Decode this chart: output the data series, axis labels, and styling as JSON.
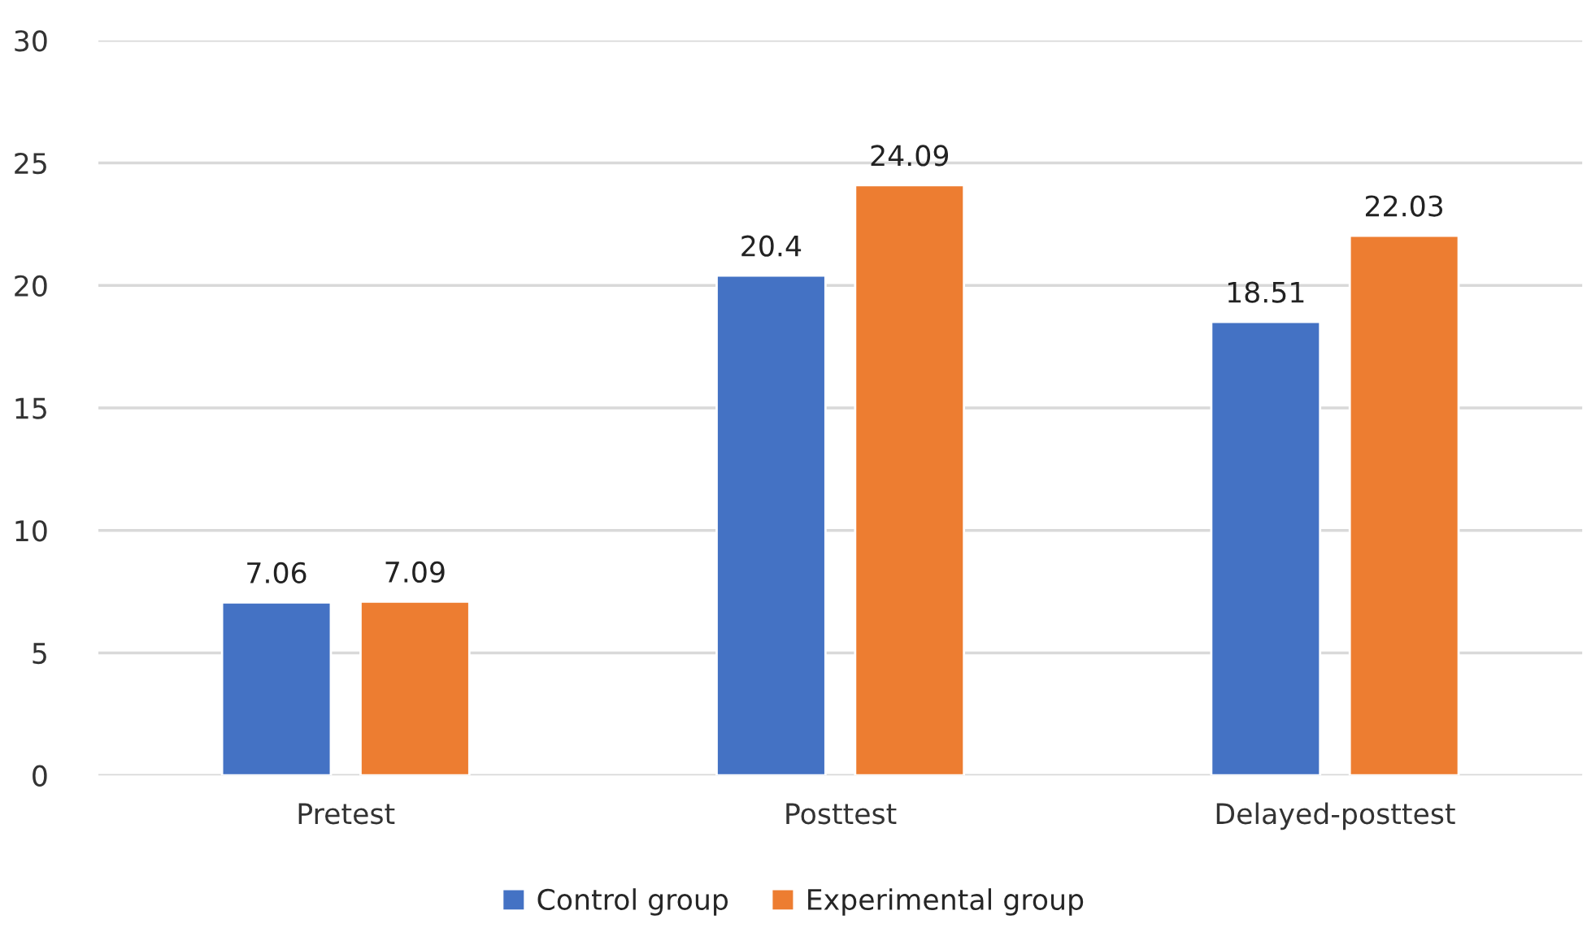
{
  "chart_data": {
    "type": "bar",
    "categories": [
      "Pretest",
      "Posttest",
      "Delayed-posttest"
    ],
    "series": [
      {
        "name": "Control group",
        "color": "#4472c4",
        "values": [
          7.06,
          20.4,
          18.51
        ]
      },
      {
        "name": "Experimental group",
        "color": "#ed7d31",
        "values": [
          7.09,
          24.09,
          22.03
        ]
      }
    ],
    "ylim": [
      0,
      30
    ],
    "yticks": [
      0,
      5,
      10,
      15,
      20,
      25,
      30
    ],
    "grid": "y",
    "legend": "bottom",
    "data_labels": true
  }
}
